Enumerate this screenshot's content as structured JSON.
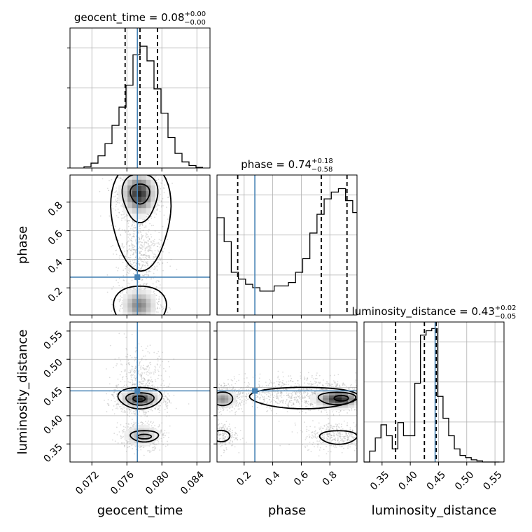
{
  "chart_data": {
    "type": "corner",
    "parameters": [
      "geocent_time",
      "phase",
      "luminosity_distance"
    ],
    "axis_labels": {
      "geocent_time": "geocent_time",
      "phase": "phase",
      "luminosity_distance": "luminosity_distance"
    },
    "ranges": {
      "geocent_time": [
        0.0695,
        0.0855
      ],
      "phase": [
        0.01,
        0.99
      ],
      "luminosity_distance": [
        0.318,
        0.566
      ]
    },
    "ticks": {
      "geocent_time": [
        0.072,
        0.076,
        0.08,
        0.084
      ],
      "phase": [
        0.2,
        0.4,
        0.6,
        0.8
      ],
      "luminosity_distance": [
        0.35,
        0.4,
        0.45,
        0.5,
        0.55
      ]
    },
    "tick_labels": {
      "geocent_time": [
        "0.072",
        "0.076",
        "0.080",
        "0.084"
      ],
      "phase": [
        "0.2",
        "0.4",
        "0.6",
        "0.8"
      ],
      "luminosity_distance": [
        "0.35",
        "0.40",
        "0.45",
        "0.50",
        "0.55"
      ]
    },
    "truths": {
      "geocent_time": 0.0772,
      "phase": 0.275,
      "luminosity_distance": 0.444
    },
    "titles": [
      {
        "param": "geocent_time",
        "text": "geocent_time = 0.08",
        "sup": "+0.00",
        "sub": "−0.00"
      },
      {
        "param": "phase",
        "text": "phase = 0.74",
        "sup": "+0.18",
        "sub": "−0.58"
      },
      {
        "param": "luminosity_distance",
        "text": "luminosity_distance = 0.43",
        "sup": "+0.02",
        "sub": "−0.05"
      }
    ],
    "quantiles": {
      "geocent_time": [
        0.0758,
        0.0775,
        0.0795
      ],
      "phase": [
        0.155,
        0.74,
        0.92
      ],
      "luminosity_distance": [
        0.374,
        0.425,
        0.446
      ]
    },
    "histograms": {
      "geocent_time": {
        "edges": [
          0.0711,
          0.0719,
          0.0727,
          0.0735,
          0.0743,
          0.0751,
          0.0759,
          0.0767,
          0.0775,
          0.0783,
          0.0791,
          0.0799,
          0.0807,
          0.0815,
          0.0823,
          0.0831,
          0.0839,
          0.0847
        ],
        "counts": [
          1,
          4,
          10,
          20,
          35,
          50,
          68,
          93,
          100,
          88,
          65,
          45,
          25,
          12,
          5,
          2,
          0.5
        ],
        "ymax": 115
      },
      "phase": {
        "edges": [
          0.01,
          0.06,
          0.11,
          0.16,
          0.21,
          0.26,
          0.31,
          0.36,
          0.41,
          0.46,
          0.51,
          0.56,
          0.61,
          0.66,
          0.71,
          0.76,
          0.81,
          0.86,
          0.91,
          0.96,
          0.99
        ],
        "counts": [
          57,
          43,
          25,
          21,
          18,
          16,
          14,
          14,
          17,
          17,
          19,
          25,
          33,
          48,
          59,
          68,
          72,
          74,
          67,
          60
        ],
        "ymax": 82
      },
      "luminosity_distance": {
        "edges": [
          0.318,
          0.328,
          0.338,
          0.348,
          0.358,
          0.368,
          0.378,
          0.388,
          0.398,
          0.408,
          0.418,
          0.428,
          0.438,
          0.448,
          0.458,
          0.468,
          0.478,
          0.488,
          0.498,
          0.508,
          0.518,
          0.528,
          0.538,
          0.548,
          0.558
        ],
        "counts": [
          0,
          5,
          11,
          17,
          12,
          6,
          18,
          12,
          12,
          36,
          58,
          60,
          61,
          30,
          20,
          12,
          6,
          3,
          2,
          1,
          0.5,
          0,
          0,
          0
        ],
        "ymax": 64
      }
    },
    "contour_levels": 4,
    "grid": true
  }
}
